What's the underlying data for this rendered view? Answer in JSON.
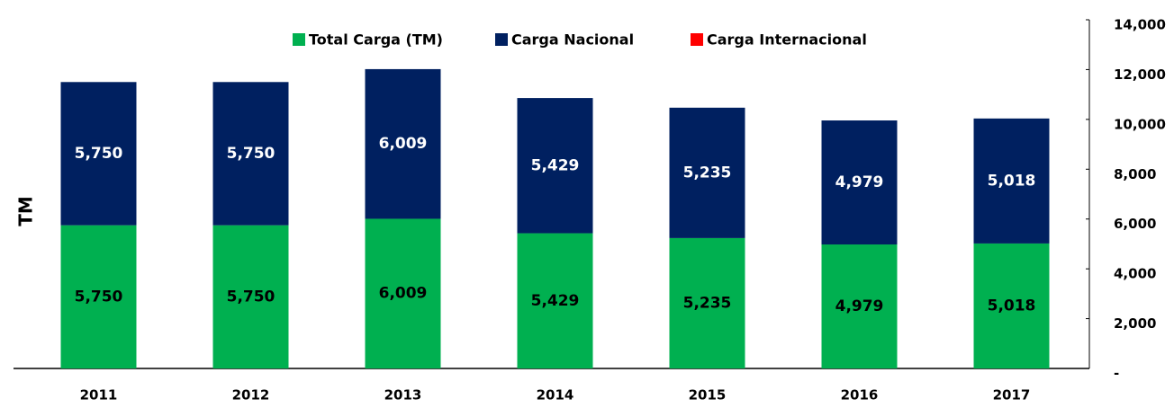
{
  "chart_data": {
    "type": "stacked_bar",
    "y_label": "TM",
    "categories": [
      "2011",
      "2012",
      "2013",
      "2014",
      "2015",
      "2016",
      "2017"
    ],
    "series": [
      {
        "name": "Total Carga (TM)",
        "color": "#00b050",
        "label_color": "#000000",
        "values": [
          5750,
          5750,
          6009,
          5429,
          5235,
          4979,
          5018
        ],
        "value_labels": [
          "5,750",
          "5,750",
          "6,009",
          "5,429",
          "5,235",
          "4,979",
          "5,018"
        ]
      },
      {
        "name": "Carga Nacional",
        "color": "#002060",
        "label_color": "#ffffff",
        "values": [
          5750,
          5750,
          6009,
          5429,
          5235,
          4979,
          5018
        ],
        "value_labels": [
          "5,750",
          "5,750",
          "6,009",
          "5,429",
          "5,235",
          "4,979",
          "5,018"
        ]
      },
      {
        "name": "Carga Internacional",
        "color": "#ff0000",
        "values": [
          0,
          0,
          0,
          0,
          0,
          0,
          0
        ]
      }
    ],
    "ylim": [
      0,
      14000
    ],
    "yticks": [
      {
        "value": 0,
        "label": "-"
      },
      {
        "value": 2000,
        "label": "2,000"
      },
      {
        "value": 4000,
        "label": "4,000"
      },
      {
        "value": 6000,
        "label": "6,000"
      },
      {
        "value": 8000,
        "label": "8,000"
      },
      {
        "value": 10000,
        "label": "10,000"
      },
      {
        "value": 12000,
        "label": "12,000"
      },
      {
        "value": 14000,
        "label": "14,000"
      }
    ],
    "legend": "top"
  }
}
